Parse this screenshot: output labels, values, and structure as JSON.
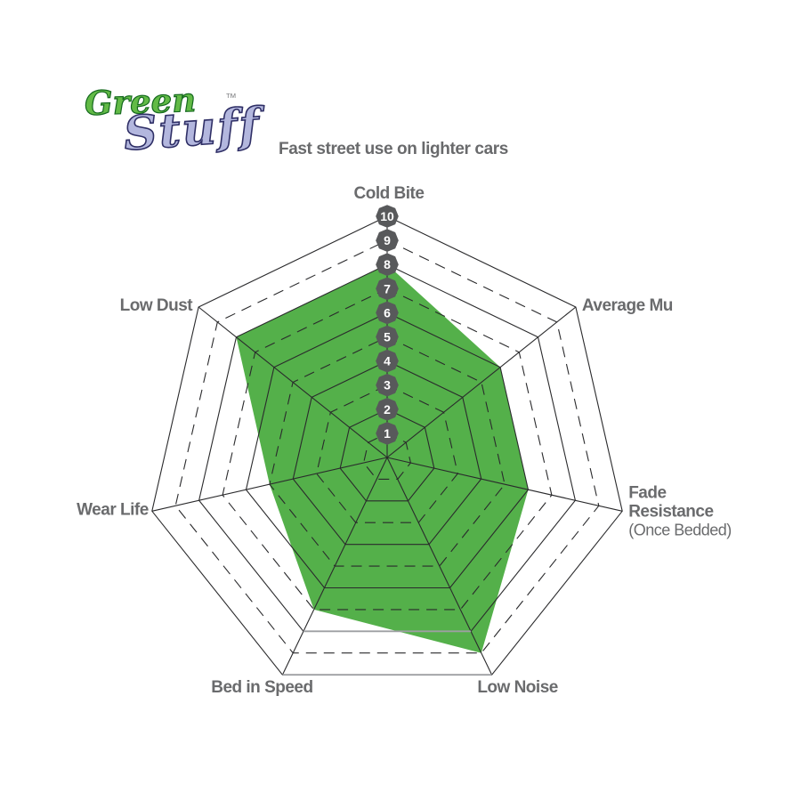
{
  "brand": {
    "word1": "Green",
    "word2": "Stuff",
    "trademark": "™"
  },
  "title": "Fast street use on lighter cars",
  "chart_data": {
    "type": "radar",
    "categories": [
      "Cold Bite",
      "Average Mu",
      "Fade Resistance",
      "Low Noise",
      "Bed in Speed",
      "Wear Life",
      "Low Dust"
    ],
    "sublabels": [
      "",
      "",
      "(Once Bedded)",
      "",
      "",
      "",
      ""
    ],
    "values": [
      8,
      6,
      6,
      9,
      7,
      5,
      8
    ],
    "scale": {
      "min": 1,
      "max": 10,
      "tick_labels": [
        "1",
        "2",
        "3",
        "4",
        "5",
        "6",
        "7",
        "8",
        "9",
        "10"
      ]
    },
    "rings": {
      "even_style": "solid",
      "odd_style": "dashed",
      "gray_bottom_edges": [
        8,
        10
      ]
    },
    "legend_position": "none",
    "colors": {
      "fill": "#54b04a",
      "grid": "#2a2a2c",
      "grid_gray": "#9d9fa2",
      "badge": "#58595b",
      "badge_text": "#ffffff",
      "label": "#6a6b6d"
    }
  }
}
